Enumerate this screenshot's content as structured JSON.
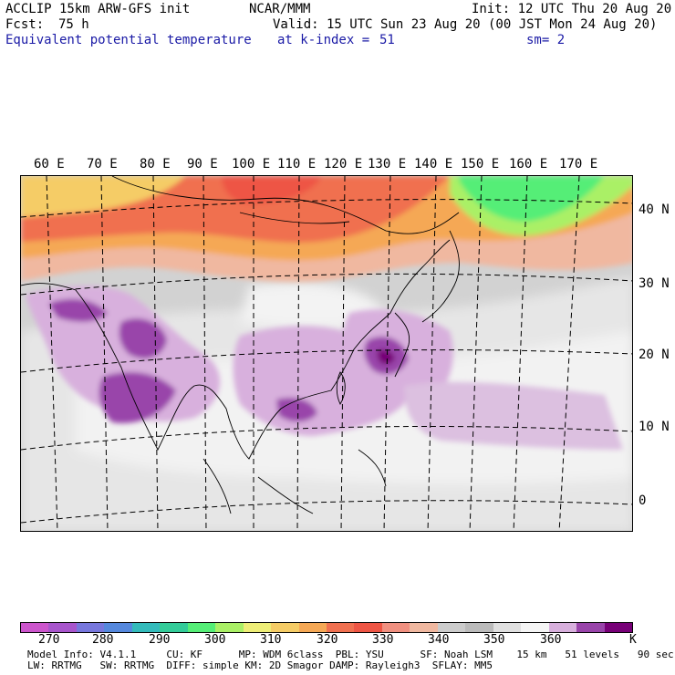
{
  "header": {
    "model": "ACCLIP 15km ARW-GFS init",
    "center": "NCAR/MMM",
    "init": "Init: 12 UTC Thu 20 Aug 20",
    "fcst_label": "Fcst:",
    "fcst_value": "75 h",
    "valid": "Valid: 15 UTC Sun 23 Aug 20 (00 JST Mon 24 Aug 20)",
    "field": "Equivalent potential temperature",
    "level": "at k-index =",
    "level_value": "51",
    "smooth": "sm= 2"
  },
  "lon_labels": [
    "60 E",
    "70 E",
    "80 E",
    "90 E",
    "100 E",
    "110 E",
    "120 E",
    "130 E",
    "140 E",
    "150 E",
    "160 E",
    "170 E"
  ],
  "lat_labels": [
    "40 N",
    "30 N",
    "20 N",
    "10 N",
    "0"
  ],
  "colorbar": {
    "colors": [
      "#cc55cc",
      "#a855cc",
      "#7777dd",
      "#5588dd",
      "#33bbbb",
      "#33cc99",
      "#55ee77",
      "#aaf066",
      "#eeee77",
      "#f5cc66",
      "#f5a855",
      "#f07050",
      "#ee5544",
      "#f09080",
      "#f0b8a0",
      "#cccccc",
      "#bbbbbb",
      "#e0e0e0",
      "#f5f5f5",
      "#d8b0dd",
      "#9944aa",
      "#770077"
    ],
    "ticks": [
      "270",
      "280",
      "290",
      "300",
      "310",
      "320",
      "330",
      "340",
      "350",
      "360"
    ],
    "unit": "K"
  },
  "footer": {
    "line1": "Model Info: V4.1.1     CU: KF      MP: WDM 6class  PBL: YSU      SF: Noah LSM    15 km   51 levels   90 sec",
    "line2": "LW: RRTMG   SW: RRTMG  DIFF: simple KM: 2D Smagor DAMP: Rayleigh3  SFLAY: MM5"
  }
}
